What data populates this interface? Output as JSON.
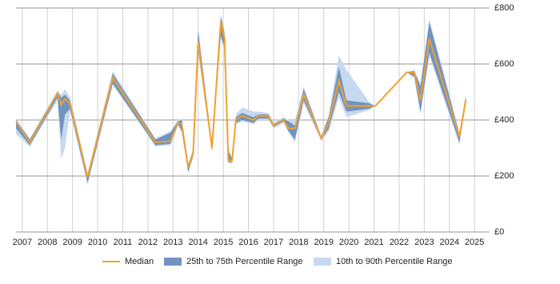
{
  "chart_data": {
    "type": "line",
    "x": [
      2006.75,
      2007.3,
      2008.4,
      2008.55,
      2008.7,
      2008.9,
      2009.6,
      2010.6,
      2012.3,
      2012.9,
      2013.2,
      2013.35,
      2013.6,
      2013.8,
      2014.0,
      2014.55,
      2014.9,
      2015.05,
      2015.2,
      2015.35,
      2015.5,
      2015.75,
      2016.2,
      2016.4,
      2016.8,
      2017.0,
      2017.4,
      2017.6,
      2017.85,
      2018.2,
      2018.9,
      2019.2,
      2019.6,
      2019.9,
      2020.8,
      2021.05,
      2022.3,
      2022.6,
      2022.85,
      2023.2,
      2024.4,
      2024.65
    ],
    "series": [
      {
        "name": "10th to 90th Percentile Range",
        "color": "#c6d9ee",
        "low": [
          350,
          305,
          470,
          260,
          300,
          430,
          170,
          525,
          305,
          310,
          380,
          355,
          210,
          265,
          640,
          285,
          690,
          650,
          245,
          245,
          385,
          395,
          385,
          400,
          400,
          370,
          390,
          355,
          320,
          460,
          325,
          360,
          480,
          410,
          435,
          450,
          570,
          550,
          420,
          630,
          310,
          455
        ],
        "high": [
          405,
          335,
          505,
          490,
          510,
          480,
          210,
          575,
          335,
          360,
          400,
          405,
          245,
          295,
          730,
          315,
          775,
          720,
          300,
          265,
          420,
          445,
          430,
          430,
          425,
          390,
          410,
          400,
          400,
          520,
          345,
          420,
          630,
          580,
          465,
          450,
          570,
          580,
          530,
          760,
          355,
          490
        ]
      },
      {
        "name": "25th to 75th Percentile Range",
        "color": "#7293c0",
        "low": [
          370,
          310,
          480,
          330,
          420,
          440,
          175,
          530,
          310,
          315,
          385,
          360,
          215,
          270,
          650,
          290,
          700,
          660,
          250,
          250,
          390,
          400,
          390,
          405,
          405,
          375,
          395,
          360,
          330,
          470,
          330,
          370,
          500,
          430,
          440,
          450,
          570,
          555,
          430,
          640,
          320,
          460
        ],
        "high": [
          400,
          330,
          500,
          480,
          490,
          470,
          205,
          565,
          330,
          355,
          395,
          400,
          240,
          290,
          720,
          310,
          770,
          710,
          290,
          260,
          410,
          425,
          410,
          420,
          420,
          385,
          405,
          395,
          380,
          510,
          340,
          410,
          590,
          470,
          460,
          450,
          570,
          575,
          520,
          750,
          350,
          485
        ]
      },
      {
        "name": "Median",
        "color": "#f0a030",
        "values": [
          395,
          320,
          495,
          455,
          475,
          460,
          195,
          550,
          320,
          325,
          390,
          385,
          230,
          280,
          680,
          300,
          750,
          690,
          255,
          255,
          400,
          415,
          400,
          415,
          415,
          380,
          400,
          370,
          370,
          490,
          335,
          390,
          540,
          450,
          450,
          450,
          570,
          570,
          470,
          690,
          340,
          470
        ]
      }
    ],
    "xlim": [
      2006.75,
      2025.6
    ],
    "xticks": [
      2007,
      2008,
      2009,
      2010,
      2011,
      2012,
      2013,
      2014,
      2015,
      2016,
      2017,
      2018,
      2019,
      2020,
      2021,
      2022,
      2023,
      2024,
      2025
    ],
    "ylim": [
      0,
      800
    ],
    "yticks": [
      {
        "value": 0,
        "label": "£0"
      },
      {
        "value": 200,
        "label": "£200"
      },
      {
        "value": 400,
        "label": "£400"
      },
      {
        "value": 600,
        "label": "£600"
      },
      {
        "value": 800,
        "label": "£800"
      }
    ],
    "grid": true
  }
}
